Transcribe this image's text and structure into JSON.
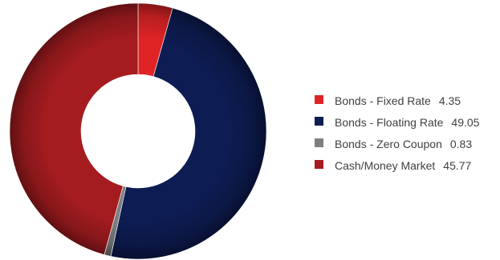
{
  "chart_data": {
    "type": "pie",
    "style": "donut",
    "title": "",
    "categories": [
      "Bonds - Fixed Rate",
      "Bonds - Floating Rate",
      "Bonds - Zero Coupon",
      "Cash/Money Market"
    ],
    "values": [
      4.35,
      49.05,
      0.83,
      45.77
    ],
    "value_labels": [
      "4.35",
      "49.05",
      "0.83",
      "45.77"
    ],
    "colors": [
      "#e02426",
      "#0d1c52",
      "#7f7f7f",
      "#a51c20"
    ],
    "legend_position": "right"
  }
}
